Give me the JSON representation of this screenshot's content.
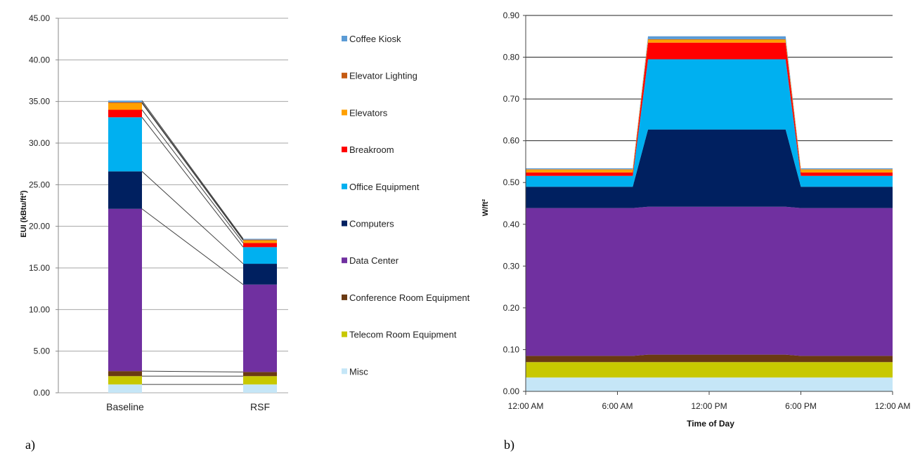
{
  "panels": {
    "a_label": "a)",
    "b_label": "b)"
  },
  "chart_data": [
    {
      "type": "bar",
      "stacked": true,
      "ylabel": "EUI (kBtu/ft²)",
      "ylim": [
        0,
        45
      ],
      "y_ticks": [
        "0.00",
        "5.00",
        "10.00",
        "15.00",
        "20.00",
        "25.00",
        "30.00",
        "35.00",
        "40.00",
        "45.00"
      ],
      "categories": [
        "Baseline",
        "RSF"
      ],
      "grid": true,
      "legend_position": "right",
      "connector_lines": true,
      "series": [
        {
          "name": "Misc",
          "color": "#c5e6f7",
          "values": [
            1.0,
            1.0
          ]
        },
        {
          "name": "Telecom Room Equipment",
          "color": "#c8c800",
          "values": [
            1.0,
            1.0
          ]
        },
        {
          "name": "Conference Room Equipment",
          "color": "#6a3a12",
          "values": [
            0.6,
            0.5
          ]
        },
        {
          "name": "Data Center",
          "color": "#7030a0",
          "values": [
            19.5,
            10.5
          ]
        },
        {
          "name": "Computers",
          "color": "#002060",
          "values": [
            4.5,
            2.5
          ]
        },
        {
          "name": "Office Equipment",
          "color": "#00b0f0",
          "values": [
            6.5,
            2.0
          ]
        },
        {
          "name": "Breakroom",
          "color": "#ff0000",
          "values": [
            0.9,
            0.5
          ]
        },
        {
          "name": "Elevators",
          "color": "#ffa000",
          "values": [
            0.8,
            0.3
          ]
        },
        {
          "name": "Elevator Lighting",
          "color": "#c55a11",
          "values": [
            0.1,
            0.1
          ]
        },
        {
          "name": "Coffee Kiosk",
          "color": "#5b9bd5",
          "values": [
            0.2,
            0.1
          ]
        }
      ]
    },
    {
      "type": "area",
      "stacked": true,
      "xlabel": "Time of Day",
      "ylabel": "W/ft²",
      "ylim": [
        0,
        0.9
      ],
      "y_ticks": [
        "0.00",
        "0.10",
        "0.20",
        "0.30",
        "0.40",
        "0.50",
        "0.60",
        "0.70",
        "0.80",
        "0.90"
      ],
      "x_ticks": [
        "12:00 AM",
        "6:00 AM",
        "12:00 PM",
        "6:00 PM",
        "12:00 AM"
      ],
      "x": [
        0,
        7,
        8,
        17,
        18,
        24
      ],
      "grid": true,
      "series": [
        {
          "name": "Misc",
          "color": "#c5e6f7",
          "values": [
            0.033,
            0.033,
            0.033,
            0.033,
            0.033,
            0.033
          ]
        },
        {
          "name": "Telecom Room Equipment",
          "color": "#c8c800",
          "values": [
            0.037,
            0.037,
            0.037,
            0.037,
            0.037,
            0.037
          ]
        },
        {
          "name": "Conference Room Equipment",
          "color": "#6a3a12",
          "values": [
            0.015,
            0.015,
            0.018,
            0.018,
            0.015,
            0.015
          ]
        },
        {
          "name": "Data Center",
          "color": "#7030a0",
          "values": [
            0.354,
            0.354,
            0.354,
            0.354,
            0.354,
            0.354
          ]
        },
        {
          "name": "Computers",
          "color": "#002060",
          "values": [
            0.051,
            0.051,
            0.185,
            0.185,
            0.051,
            0.051
          ]
        },
        {
          "name": "Office Equipment",
          "color": "#00b0f0",
          "values": [
            0.026,
            0.026,
            0.168,
            0.168,
            0.026,
            0.026
          ]
        },
        {
          "name": "Breakroom",
          "color": "#ff0000",
          "values": [
            0.008,
            0.008,
            0.04,
            0.04,
            0.008,
            0.008
          ]
        },
        {
          "name": "Elevators",
          "color": "#ffa000",
          "values": [
            0.007,
            0.007,
            0.007,
            0.007,
            0.007,
            0.007
          ]
        },
        {
          "name": "Elevator Lighting",
          "color": "#c55a11",
          "values": [
            0.001,
            0.001,
            0.001,
            0.001,
            0.001,
            0.001
          ]
        },
        {
          "name": "Coffee Kiosk",
          "color": "#5b9bd5",
          "values": [
            0.002,
            0.002,
            0.007,
            0.007,
            0.002,
            0.002
          ]
        }
      ]
    }
  ]
}
